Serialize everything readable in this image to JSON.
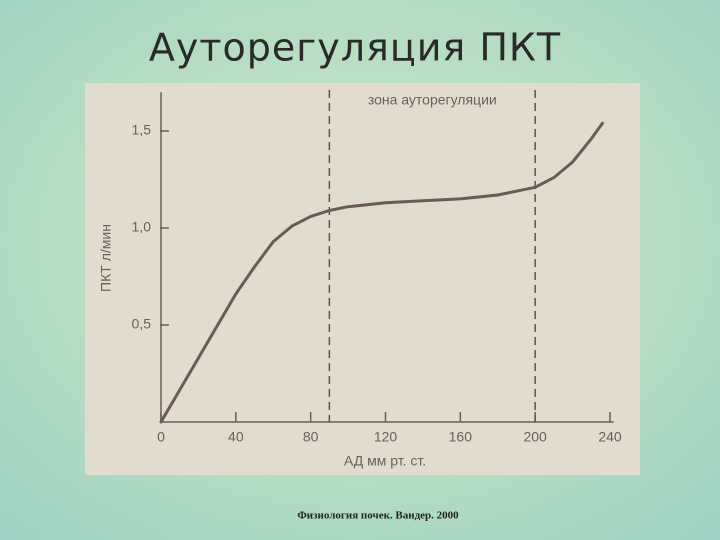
{
  "slide": {
    "title": "Ауторегуляция ПКТ",
    "footer": "Физиология почек. Вандер. 2000"
  },
  "chart_data": {
    "type": "line",
    "x_label": "АД мм рт. ст.",
    "y_label": "ПКТ л/мин",
    "annotation": "зона ауторегуляции",
    "zone": [
      90,
      200
    ],
    "x": [
      0,
      20,
      40,
      50,
      60,
      70,
      80,
      90,
      100,
      120,
      140,
      160,
      180,
      200,
      210,
      220,
      230,
      236
    ],
    "series": [
      {
        "name": "ПКТ",
        "color": "#6b5a55",
        "values": [
          0,
          0.33,
          0.66,
          0.8,
          0.93,
          1.01,
          1.06,
          1.09,
          1.11,
          1.13,
          1.14,
          1.15,
          1.17,
          1.21,
          1.26,
          1.34,
          1.46,
          1.54
        ]
      }
    ],
    "xlim": [
      0,
      242
    ],
    "ylim": [
      0,
      1.7
    ],
    "xticks": [
      0,
      40,
      80,
      120,
      160,
      200,
      240
    ],
    "yticks": [
      {
        "value": 0.5,
        "label": "0,5"
      },
      {
        "value": 1.0,
        "label": "1,0"
      },
      {
        "value": 1.5,
        "label": "1,5"
      }
    ]
  }
}
